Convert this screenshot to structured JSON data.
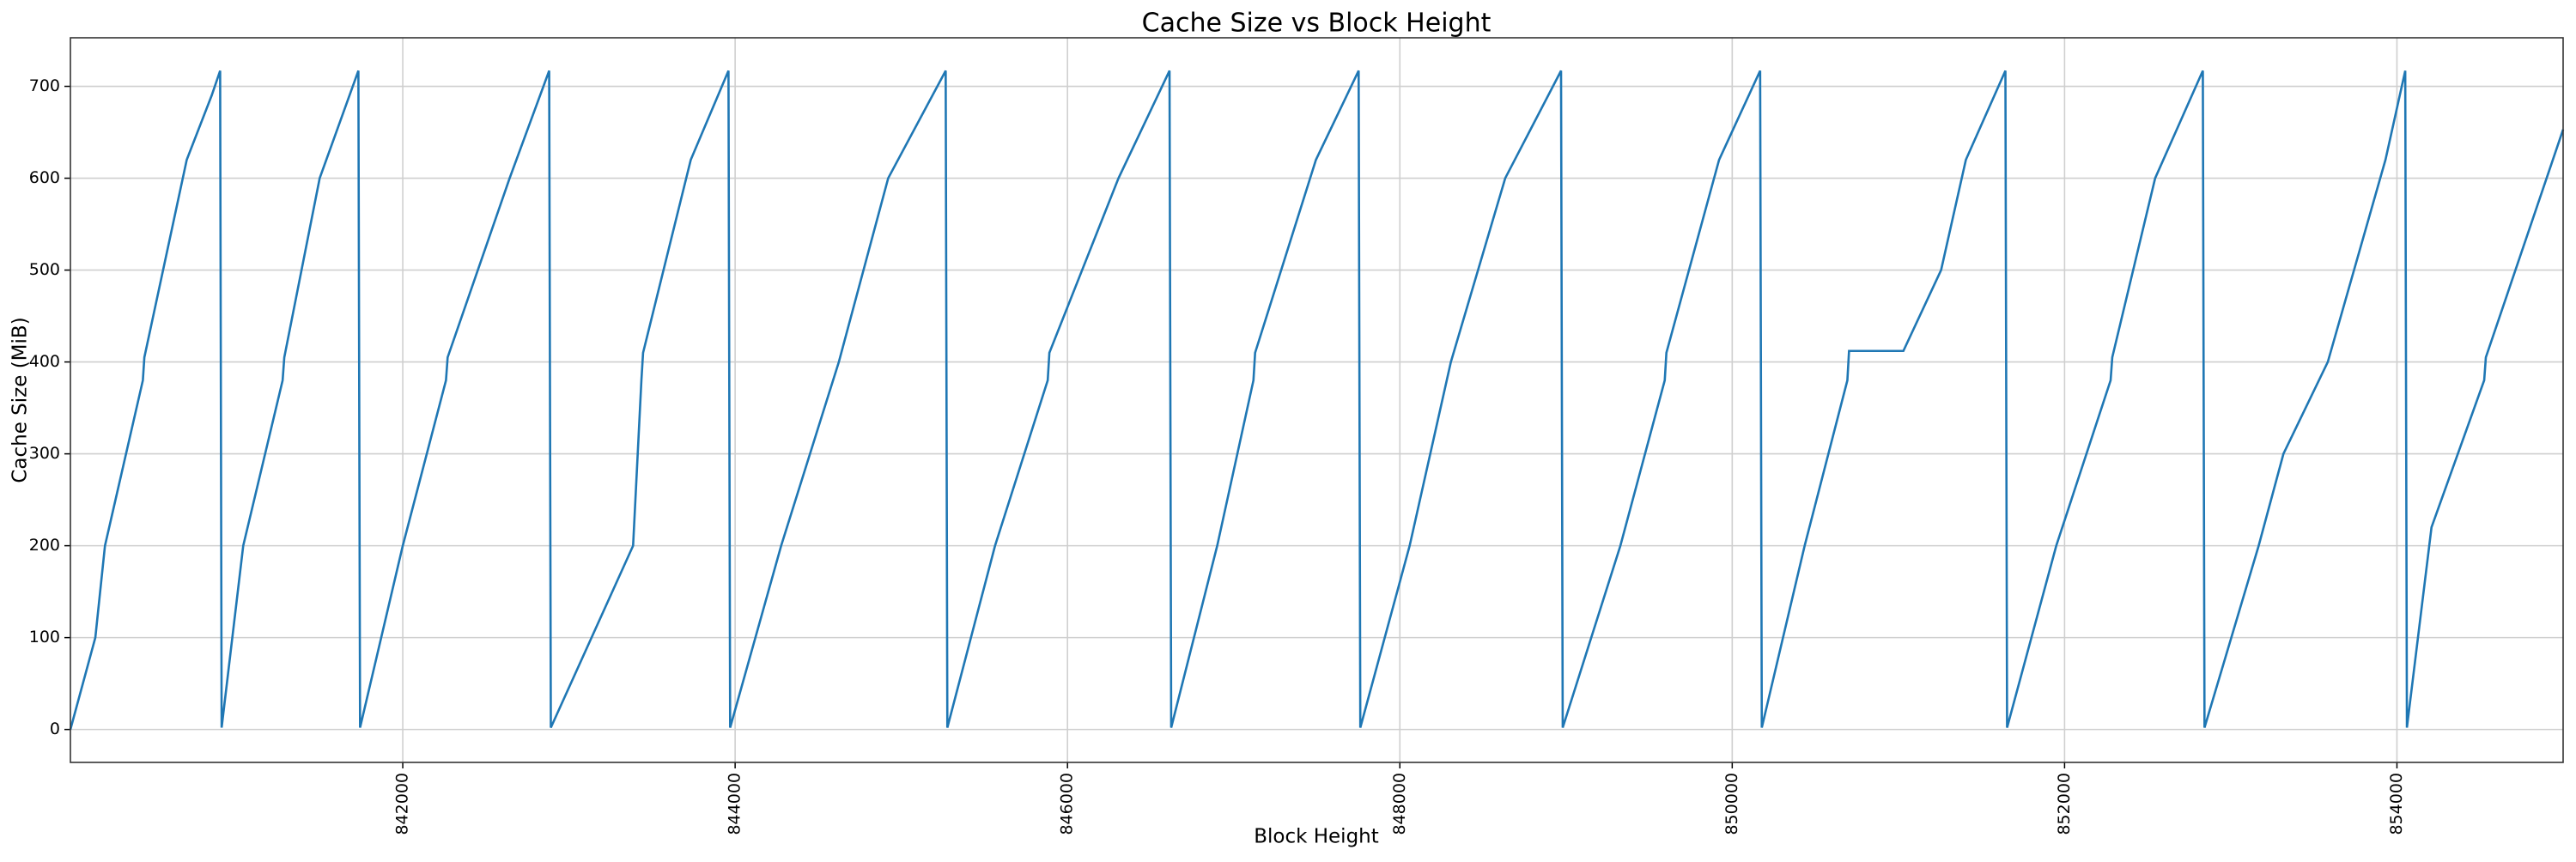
{
  "chart_data": {
    "type": "line",
    "title": "Cache Size vs Block Height",
    "x_label": "Block Height",
    "y_label": "Cache Size (MiB)",
    "x": [
      840000,
      840150,
      840208,
      840436,
      840445,
      840700,
      840850,
      840901,
      840910,
      841040,
      841277,
      841287,
      841500,
      841733,
      841743,
      842000,
      842260,
      842270,
      842643,
      842881,
      842891,
      843386,
      843436,
      843446,
      843733,
      843960,
      843970,
      844277,
      844624,
      844921,
      845267,
      845277,
      845564,
      845881,
      845891,
      846307,
      846614,
      846624,
      846901,
      847119,
      847129,
      847495,
      847752,
      847762,
      848059,
      848307,
      848634,
      848970,
      848980,
      849327,
      849594,
      849604,
      849921,
      850168,
      850178,
      850436,
      850693,
      850703,
      851030,
      851257,
      851406,
      851644,
      851654,
      851950,
      852277,
      852287,
      852545,
      852832,
      852842,
      853168,
      853317,
      853584,
      853931,
      854050,
      854060,
      854208,
      854525,
      854535,
      855000
    ],
    "series": [
      {
        "name": "Cache Size",
        "color": "#1f77b4",
        "values": [
          0,
          100,
          200,
          380,
          405,
          620,
          690,
          717,
          2,
          200,
          380,
          405,
          600,
          717,
          2,
          200,
          380,
          405,
          600,
          717,
          2,
          200,
          380,
          410,
          620,
          717,
          2,
          200,
          400,
          600,
          717,
          2,
          200,
          380,
          410,
          600,
          717,
          2,
          200,
          380,
          410,
          620,
          717,
          2,
          200,
          400,
          600,
          717,
          2,
          200,
          380,
          410,
          620,
          717,
          2,
          200,
          380,
          412,
          412,
          500,
          620,
          717,
          2,
          200,
          380,
          405,
          600,
          717,
          2,
          200,
          300,
          400,
          620,
          717,
          2,
          220,
          380,
          405,
          653
        ]
      }
    ],
    "xlim": [
      840000,
      855000
    ],
    "xticks": [
      842000,
      844000,
      846000,
      848000,
      850000,
      852000,
      854000
    ],
    "ylim": [
      -35.85,
      752.85
    ],
    "yticks": [
      0,
      100,
      200,
      300,
      400,
      500,
      600,
      700
    ],
    "grid": true
  }
}
